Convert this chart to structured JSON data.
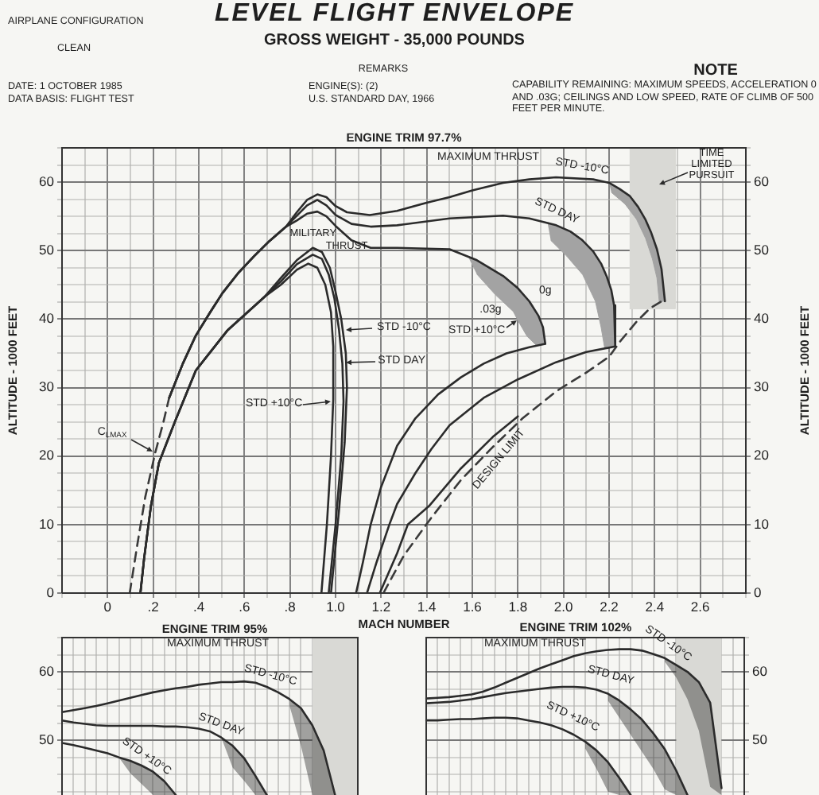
{
  "chart_data": [
    {
      "type": "other",
      "title": "LEVEL FLIGHT ENVELOPE",
      "subtitle": "GROSS WEIGHT - 35,000 POUNDS",
      "annotations": [
        "AIRPLANE CONFIGURATION",
        "CLEAN",
        "DATE: 1 OCTOBER 1985",
        "DATA BASIS: FLIGHT TEST",
        "REMARKS",
        "ENGINE(S): (2)",
        "U.S. STANDARD DAY, 1966",
        "NOTE",
        "CAPABILITY REMAINING: MAXIMUM SPEEDS, ACCELERATION 0 AND .03G; CEILINGS AND LOW SPEED, RATE OF CLIMB OF 500 FEET PER MINUTE."
      ]
    },
    {
      "type": "line",
      "title": "ENGINE TRIM 97.7%",
      "xlabel": "MACH NUMBER",
      "ylabel": "ALTITUDE - 1000 FEET",
      "y2label": "ALTITUDE - 1000 FEET",
      "grid": true,
      "xlim": [
        -0.2,
        2.8
      ],
      "xticks": [
        {
          "value": -0.2,
          "label": null
        },
        {
          "value": -0.1,
          "label": null
        },
        0,
        {
          "value": 0.1,
          "label": null
        },
        {
          "value": 0.2,
          "label": ".2"
        },
        {
          "value": 0.3,
          "label": null
        },
        {
          "value": 0.4,
          "label": ".4"
        },
        {
          "value": 0.5,
          "label": null
        },
        {
          "value": 0.6,
          "label": ".6"
        },
        {
          "value": 0.7,
          "label": null
        },
        {
          "value": 0.8,
          "label": ".8"
        },
        {
          "value": 0.9,
          "label": null
        },
        {
          "value": 1,
          "label": "1.0"
        },
        {
          "value": 1.1,
          "label": null
        },
        1.2,
        {
          "value": 1.3,
          "label": null
        },
        1.4,
        {
          "value": 1.5,
          "label": null
        },
        1.6,
        {
          "value": 1.7,
          "label": null
        },
        1.8,
        {
          "value": 1.9,
          "label": null
        },
        {
          "value": 2,
          "label": "2.0"
        },
        {
          "value": 2.1,
          "label": null
        },
        2.2,
        {
          "value": 2.3,
          "label": null
        },
        2.4,
        {
          "value": 2.5,
          "label": null
        },
        2.6,
        {
          "value": 2.7,
          "label": null
        },
        {
          "value": 2.8,
          "label": null
        }
      ],
      "ylim": [
        0,
        65
      ],
      "yticks": [
        0,
        {
          "value": 2.5,
          "label": null
        },
        {
          "value": 5,
          "label": null
        },
        {
          "value": 7.5,
          "label": null
        },
        10,
        {
          "value": 12.5,
          "label": null
        },
        {
          "value": 15,
          "label": null
        },
        {
          "value": 17.5,
          "label": null
        },
        20,
        {
          "value": 22.5,
          "label": null
        },
        {
          "value": 25,
          "label": null
        },
        {
          "value": 27.5,
          "label": null
        },
        30,
        {
          "value": 32.5,
          "label": null
        },
        {
          "value": 35,
          "label": null
        },
        {
          "value": 37.5,
          "label": null
        },
        40,
        {
          "value": 42.5,
          "label": null
        },
        {
          "value": 45,
          "label": null
        },
        {
          "value": 47.5,
          "label": null
        },
        50,
        {
          "value": 52.5,
          "label": null
        },
        {
          "value": 55,
          "label": null
        },
        {
          "value": 57.5,
          "label": null
        },
        60,
        {
          "value": 62.5,
          "label": null
        },
        {
          "value": 65,
          "label": null
        }
      ],
      "y2lim": [
        0,
        65
      ],
      "y2ticks": [
        0,
        {
          "value": 2.5,
          "label": null
        },
        {
          "value": 5,
          "label": null
        },
        {
          "value": 7.5,
          "label": null
        },
        10,
        {
          "value": 12.5,
          "label": null
        },
        {
          "value": 15,
          "label": null
        },
        {
          "value": 17.5,
          "label": null
        },
        20,
        {
          "value": 22.5,
          "label": null
        },
        {
          "value": 25,
          "label": null
        },
        {
          "value": 27.5,
          "label": null
        },
        30,
        {
          "value": 32.5,
          "label": null
        },
        {
          "value": 35,
          "label": null
        },
        {
          "value": 37.5,
          "label": null
        },
        40,
        {
          "value": 42.5,
          "label": null
        },
        {
          "value": 45,
          "label": null
        },
        {
          "value": 47.5,
          "label": null
        },
        50,
        {
          "value": 52.5,
          "label": null
        },
        {
          "value": 55,
          "label": null
        },
        {
          "value": 57.5,
          "label": null
        },
        60,
        {
          "value": 62.5,
          "label": null
        },
        {
          "value": 65,
          "label": null
        }
      ],
      "series": [
        {
          "type": "line",
          "color": "#3a3a3a",
          "line_style": "dashed",
          "x": [
            0.097,
            0.13,
            0.165,
            0.209,
            0.245,
            0.27
          ],
          "values": [
            0,
            7,
            14,
            20.5,
            25,
            28.5
          ]
        },
        {
          "type": "line",
          "color": "#2b2b2b",
          "x": [
            0.27,
            0.33,
            0.387,
            0.45,
            0.504,
            0.575,
            0.643,
            0.71,
            0.783,
            0.83,
            0.875,
            0.92,
            0.96,
            1.0,
            1.05,
            1.15,
            1.27,
            1.4,
            1.5,
            1.6,
            1.735,
            1.85,
            1.967,
            2.13,
            2.2,
            2.246,
            2.29,
            2.327,
            2.36,
            2.385,
            2.41,
            2.43,
            2.445
          ],
          "values": [
            28.5,
            33.5,
            37.6,
            41,
            43.8,
            46.8,
            49.2,
            51.4,
            53.5,
            55.6,
            57.4,
            58.2,
            57.8,
            56.5,
            55.6,
            55.2,
            55.8,
            57,
            57.8,
            58.8,
            59.9,
            60.4,
            60.7,
            60.4,
            59.9,
            59.0,
            58.0,
            56.4,
            54.5,
            52.6,
            50.2,
            47.3,
            42.6
          ]
        },
        {
          "type": "line",
          "color": "#2b2b2b",
          "x": [
            0.27,
            0.33,
            0.387,
            0.45,
            0.504,
            0.575,
            0.643,
            0.71,
            0.783,
            0.83,
            0.875,
            0.92,
            0.96,
            1.0,
            1.07,
            1.154,
            1.27,
            1.5,
            1.735,
            1.85,
            1.968,
            2.03,
            2.08,
            2.13,
            2.165,
            2.19,
            2.21,
            2.222,
            2.227
          ],
          "values": [
            28.5,
            33.5,
            37.6,
            41,
            43.8,
            46.8,
            49.2,
            51.4,
            53.5,
            55.1,
            56.6,
            57.4,
            56.6,
            55.2,
            53.9,
            53.5,
            53.7,
            54.7,
            55.1,
            54.7,
            53.7,
            52.8,
            51.6,
            49.9,
            48.1,
            46.2,
            44.2,
            42,
            36
          ]
        },
        {
          "type": "line",
          "color": "#2b2b2b",
          "x": [
            0.27,
            0.33,
            0.387,
            0.45,
            0.504,
            0.575,
            0.643,
            0.71,
            0.783,
            0.83,
            0.875,
            0.92,
            0.96,
            1.0,
            1.07,
            1.154,
            1.27,
            1.5,
            1.62,
            1.735,
            1.8,
            1.85,
            1.89,
            1.91,
            1.92
          ],
          "values": [
            28.5,
            33.5,
            37.6,
            41,
            43.8,
            46.8,
            49.2,
            51.4,
            53.5,
            54.4,
            55.4,
            55.7,
            55,
            53.6,
            51.5,
            50.4,
            50.4,
            50.2,
            48.6,
            46.3,
            44.5,
            42.6,
            40.5,
            38.8,
            36.4
          ]
        },
        {
          "type": "line",
          "color": "#2b2b2b",
          "x": [
            0.144,
            0.16,
            0.19,
            0.225,
            0.295,
            0.387,
            0.527,
            0.69,
            0.76,
            0.83,
            0.9,
            0.94,
            0.975,
            1.0,
            1.025,
            1.045,
            1.05,
            1.04,
            1.015,
            0.98
          ],
          "values": [
            0,
            5,
            12.7,
            19,
            25,
            32.5,
            38.4,
            43.3,
            46,
            48.6,
            50.4,
            49.8,
            47.5,
            44,
            40,
            35,
            30,
            22,
            12,
            0
          ]
        },
        {
          "type": "line",
          "color": "#2b2b2b",
          "x": [
            0.144,
            0.16,
            0.19,
            0.225,
            0.295,
            0.387,
            0.527,
            0.69,
            0.76,
            0.83,
            0.9,
            0.94,
            0.97,
            0.995,
            1.015,
            1.03,
            1.035,
            1.025,
            1.0,
            0.97
          ],
          "values": [
            0,
            5,
            12.7,
            19,
            25,
            32.5,
            38.4,
            43.3,
            45.5,
            48,
            49.4,
            48.8,
            46.5,
            43,
            38.5,
            33.5,
            28,
            20,
            10,
            0
          ]
        },
        {
          "type": "line",
          "color": "#2b2b2b",
          "x": [
            0.144,
            0.16,
            0.19,
            0.225,
            0.295,
            0.387,
            0.527,
            0.69,
            0.76,
            0.83,
            0.88,
            0.92,
            0.955,
            0.98,
            0.99,
            0.99,
            0.98,
            0.962,
            0.938
          ],
          "values": [
            0,
            5,
            12.7,
            19,
            25,
            32.5,
            38.4,
            43.3,
            45,
            47.2,
            48.1,
            47.5,
            45,
            41,
            36,
            28.3,
            20,
            10,
            0
          ]
        },
        {
          "type": "line",
          "color": "#2b2b2b",
          "x": [
            1.09,
            1.12,
            1.154,
            1.2,
            1.27,
            1.35,
            1.45,
            1.55,
            1.65,
            1.75,
            1.85,
            1.92
          ],
          "values": [
            0,
            4.5,
            10,
            15.5,
            21.5,
            25.5,
            29,
            31.5,
            33.5,
            35,
            35.9,
            36.4
          ]
        },
        {
          "type": "line",
          "color": "#2b2b2b",
          "x": [
            1.138,
            1.18,
            1.236,
            1.27,
            1.35,
            1.42,
            1.5,
            1.65,
            1.8,
            1.967,
            2.1,
            2.227
          ],
          "values": [
            0,
            4.5,
            10,
            13,
            17.5,
            21,
            24.5,
            28.5,
            31.2,
            33.7,
            35.2,
            36
          ]
        },
        {
          "type": "line",
          "color": "#2b2b2b",
          "x": [
            1.194,
            1.27,
            1.317,
            1.41,
            1.55,
            1.69,
            1.8
          ],
          "values": [
            0,
            5.8,
            10,
            12.7,
            18.2,
            22.8,
            25.8
          ]
        },
        {
          "type": "line",
          "color": "#3a3a3a",
          "line_style": "dashed",
          "x": [
            1.21,
            1.3,
            1.42,
            1.55,
            1.68,
            1.82,
            1.97,
            2.1,
            2.2,
            2.25,
            2.32,
            2.38,
            2.43
          ],
          "values": [
            0,
            5.5,
            11,
            16.5,
            21,
            25.5,
            29.5,
            32.2,
            34.5,
            36.8,
            39.6,
            41.6,
            42.6
          ]
        },
        {
          "type": "area",
          "color": "#a3a3a3",
          "x": [
            2.2,
            2.246,
            2.29,
            2.327,
            2.36,
            2.385,
            2.41,
            2.43,
            2.445,
            2.42,
            2.41,
            2.39,
            2.36,
            2.32,
            2.27,
            2.21
          ],
          "values": [
            59.9,
            59.0,
            58.0,
            56.4,
            54.5,
            52.6,
            50.2,
            47.3,
            42.6,
            42.6,
            46,
            48.8,
            51.8,
            54.6,
            56.8,
            58.5
          ]
        },
        {
          "type": "area",
          "color": "#a3a3a3",
          "x": [
            1.93,
            1.968,
            2.03,
            2.08,
            2.13,
            2.165,
            2.19,
            2.21,
            2.222,
            2.227,
            2.18,
            2.165,
            2.14,
            2.084,
            2.014,
            1.944
          ],
          "values": [
            54.1,
            53.7,
            52.8,
            51.6,
            49.9,
            48.1,
            46.2,
            44.2,
            42,
            36,
            35.9,
            38.8,
            42.6,
            46.5,
            49.2,
            51.5
          ]
        },
        {
          "type": "area",
          "color": "#a3a3a3",
          "x": [
            1.58,
            1.62,
            1.735,
            1.8,
            1.85,
            1.89,
            1.91,
            1.92,
            1.88,
            1.84,
            1.8,
            1.78,
            1.7,
            1.619
          ],
          "values": [
            49.2,
            48.6,
            46.3,
            44.5,
            42.6,
            40.5,
            38.8,
            36.4,
            36.2,
            37.5,
            39.8,
            41.1,
            43.6,
            46.6
          ]
        },
        {
          "type": "area",
          "color": "#d9d9d5",
          "x": [
            2.29,
            2.49,
            2.49,
            2.29
          ],
          "values": [
            65,
            65,
            41.5,
            41.5
          ]
        }
      ],
      "annotations": [
        "MAXIMUM THRUST",
        "STD -10°C",
        "STD DAY",
        "0g",
        ".03g",
        "STD +10°C",
        "TIME LIMITED PURSUIT",
        "DESIGN LIMIT",
        "MILITARY THRUST",
        "STD -10°C",
        "STD DAY",
        "STD +10°C",
        "C$_{LMAX}$"
      ]
    },
    {
      "type": "line",
      "title": "ENGINE TRIM 95%",
      "grid": true,
      "tick_labels": "y",
      "categories": [
        null,
        null,
        null,
        null,
        null,
        null,
        null,
        null,
        null,
        null,
        null,
        null,
        null,
        null,
        null,
        null,
        null,
        null,
        null,
        null,
        null,
        null,
        null,
        null,
        null,
        null,
        null
      ],
      "ylim": [
        42,
        65
      ],
      "yticks": [
        {
          "value": 42.5,
          "label": null
        },
        {
          "value": 45,
          "label": null
        },
        {
          "value": 47.5,
          "label": null
        },
        50,
        {
          "value": 52.5,
          "label": null
        },
        {
          "value": 55,
          "label": null
        },
        {
          "value": 57.5,
          "label": null
        },
        60,
        {
          "value": 62.5,
          "label": null
        },
        {
          "value": 65,
          "label": null
        }
      ],
      "series": [
        {
          "type": "line",
          "color": "#2b2b2b",
          "values": [
            54.1,
            54.4,
            54.7,
            55.0,
            55.4,
            55.8,
            56.2,
            56.6,
            57.0,
            57.3,
            57.6,
            57.8,
            58.1,
            58.3,
            58.5,
            58.5,
            58.6,
            58.4,
            57.8,
            57.0,
            56.0,
            54.7,
            52.2,
            48.5,
            42,
            null,
            null
          ],
          "lower": [
            null,
            null,
            null,
            null,
            null,
            null,
            null,
            null,
            null,
            null,
            null,
            null,
            null,
            null,
            null,
            null,
            null,
            null,
            null,
            null,
            55.0,
            49.2,
            42,
            42,
            42,
            null,
            null
          ],
          "upper": [
            null,
            null,
            null,
            null,
            null,
            null,
            null,
            null,
            null,
            null,
            null,
            null,
            null,
            null,
            null,
            null,
            null,
            null,
            null,
            null,
            56.0,
            54.7,
            52.2,
            48.5,
            42,
            null,
            null
          ]
        },
        {
          "type": "line",
          "color": "#2b2b2b",
          "values": [
            52.9,
            52.6,
            52.4,
            52.2,
            52.1,
            52.1,
            52.1,
            52.1,
            52.1,
            52.0,
            52.0,
            51.9,
            51.7,
            51.3,
            50.4,
            49.2,
            47.4,
            44.8,
            42,
            null,
            null,
            null,
            null,
            null,
            null,
            null,
            null
          ],
          "lower": [
            null,
            null,
            null,
            null,
            null,
            null,
            null,
            null,
            null,
            null,
            null,
            null,
            null,
            null,
            50.4,
            46.0,
            44.1,
            42,
            42,
            null,
            null,
            null,
            null,
            null,
            null,
            null,
            null
          ],
          "upper": [
            null,
            null,
            null,
            null,
            null,
            null,
            null,
            null,
            null,
            null,
            null,
            null,
            null,
            null,
            50.4,
            49.2,
            47.4,
            44.8,
            42,
            null,
            null,
            null,
            null,
            null,
            null,
            null,
            null
          ]
        },
        {
          "type": "line",
          "color": "#2b2b2b",
          "values": [
            49.6,
            49.3,
            48.9,
            48.5,
            48.1,
            47.5,
            47.0,
            46.3,
            45.4,
            44.0,
            42,
            null,
            null,
            null,
            null,
            null,
            null,
            null,
            null,
            null,
            null,
            null,
            null,
            null,
            null,
            null,
            null
          ],
          "lower": [
            null,
            null,
            null,
            null,
            null,
            47.5,
            45.2,
            43.6,
            42,
            42,
            42,
            null,
            null,
            null,
            null,
            null,
            null,
            null,
            null,
            null,
            null,
            null,
            null,
            null,
            null,
            null,
            null
          ],
          "upper": [
            null,
            null,
            null,
            null,
            null,
            47.5,
            47.0,
            46.3,
            45.4,
            44.0,
            42,
            null,
            null,
            null,
            null,
            null,
            null,
            null,
            null,
            null,
            null,
            null,
            null,
            null,
            null,
            null,
            null
          ]
        },
        {
          "type": "area",
          "color": "#d9d9d5",
          "values": [
            null,
            null,
            null,
            null,
            null,
            null,
            null,
            null,
            null,
            null,
            null,
            null,
            null,
            null,
            null,
            null,
            null,
            null,
            null,
            null,
            null,
            null,
            65,
            65,
            65,
            65,
            65
          ]
        }
      ],
      "annotations": [
        "MAXIMUM THRUST",
        "STD -10°C",
        "STD DAY",
        "STD +10°C"
      ]
    },
    {
      "type": "line",
      "title": "ENGINE TRIM 102%",
      "grid": true,
      "tick_labels": "y",
      "categories": [
        null,
        null,
        null,
        null,
        null,
        null,
        null,
        null,
        null,
        null,
        null,
        null,
        null,
        null,
        null,
        null,
        null,
        null,
        null,
        null,
        null,
        null,
        null,
        null,
        null,
        null,
        null,
        null,
        null
      ],
      "ylim": [
        42,
        65
      ],
      "yticks": [
        {
          "value": 42.5,
          "label": null
        },
        {
          "value": 45,
          "label": null
        },
        {
          "value": 47.5,
          "label": null
        },
        50,
        {
          "value": 52.5,
          "label": null
        },
        {
          "value": 55,
          "label": null
        },
        {
          "value": 57.5,
          "label": null
        },
        60,
        {
          "value": 62.5,
          "label": null
        },
        {
          "value": 65,
          "label": null
        }
      ],
      "series": [
        {
          "type": "line",
          "color": "#2b2b2b",
          "values": [
            56.1,
            56.2,
            56.3,
            56.5,
            56.7,
            57.1,
            57.7,
            58.4,
            59.1,
            59.8,
            60.5,
            61.1,
            61.7,
            62.3,
            62.7,
            63.0,
            63.2,
            63.3,
            63.3,
            63.1,
            62.6,
            62.0,
            61.0,
            60.0,
            58.5,
            55.5,
            43,
            null,
            null
          ],
          "lower": [
            null,
            null,
            null,
            null,
            null,
            null,
            null,
            null,
            null,
            null,
            null,
            null,
            null,
            null,
            null,
            null,
            null,
            null,
            null,
            null,
            null,
            61.5,
            59.2,
            56.0,
            51.4,
            43.2,
            42,
            null,
            null
          ],
          "upper": [
            null,
            null,
            null,
            null,
            null,
            null,
            null,
            null,
            null,
            null,
            null,
            null,
            null,
            null,
            null,
            null,
            null,
            null,
            null,
            null,
            null,
            62.0,
            61.0,
            60.0,
            58.5,
            55.5,
            43,
            null,
            null
          ]
        },
        {
          "type": "line",
          "color": "#2b2b2b",
          "values": [
            55.4,
            55.5,
            55.6,
            55.8,
            56.0,
            56.3,
            56.6,
            56.9,
            57.1,
            57.3,
            57.5,
            57.7,
            57.8,
            57.8,
            57.7,
            57.4,
            56.8,
            55.8,
            54.5,
            53.0,
            51.0,
            48.7,
            45.6,
            42,
            null,
            null,
            null,
            null,
            null
          ],
          "lower": [
            null,
            null,
            null,
            null,
            null,
            null,
            null,
            null,
            null,
            null,
            null,
            null,
            null,
            null,
            null,
            null,
            55.8,
            53.3,
            50.8,
            48.3,
            45.8,
            42.8,
            42,
            42,
            null,
            null,
            null,
            null,
            null
          ],
          "upper": [
            null,
            null,
            null,
            null,
            null,
            null,
            null,
            null,
            null,
            null,
            null,
            null,
            null,
            null,
            null,
            null,
            56.8,
            55.8,
            54.5,
            53.0,
            51.0,
            48.7,
            45.6,
            42,
            null,
            null,
            null,
            null,
            null
          ]
        },
        {
          "type": "line",
          "color": "#2b2b2b",
          "values": [
            52.9,
            52.9,
            53.0,
            53.1,
            53.1,
            53.2,
            53.3,
            53.3,
            53.2,
            52.9,
            52.6,
            52.2,
            51.6,
            50.8,
            49.8,
            48.5,
            46.8,
            44.5,
            42,
            null,
            null,
            null,
            null,
            null,
            null,
            null,
            null,
            null,
            null
          ],
          "lower": [
            null,
            null,
            null,
            null,
            null,
            null,
            null,
            null,
            null,
            null,
            null,
            null,
            null,
            null,
            48.8,
            45.8,
            42.5,
            42,
            42,
            null,
            null,
            null,
            null,
            null,
            null,
            null,
            null,
            null,
            null
          ],
          "upper": [
            null,
            null,
            null,
            null,
            null,
            null,
            null,
            null,
            null,
            null,
            null,
            null,
            null,
            null,
            49.8,
            48.5,
            46.8,
            44.5,
            42,
            null,
            null,
            null,
            null,
            null,
            null,
            null,
            null,
            null,
            null
          ]
        },
        {
          "type": "area",
          "color": "#d9d9d5",
          "values": [
            null,
            null,
            null,
            null,
            null,
            null,
            null,
            null,
            null,
            null,
            null,
            null,
            null,
            null,
            null,
            null,
            null,
            null,
            null,
            null,
            null,
            null,
            65,
            65,
            65,
            65,
            65,
            null,
            null
          ]
        }
      ],
      "annotations": [
        "MAXIMUM THRUST",
        "STD -10°C",
        "STD DAY",
        "STD +10°C"
      ]
    }
  ]
}
